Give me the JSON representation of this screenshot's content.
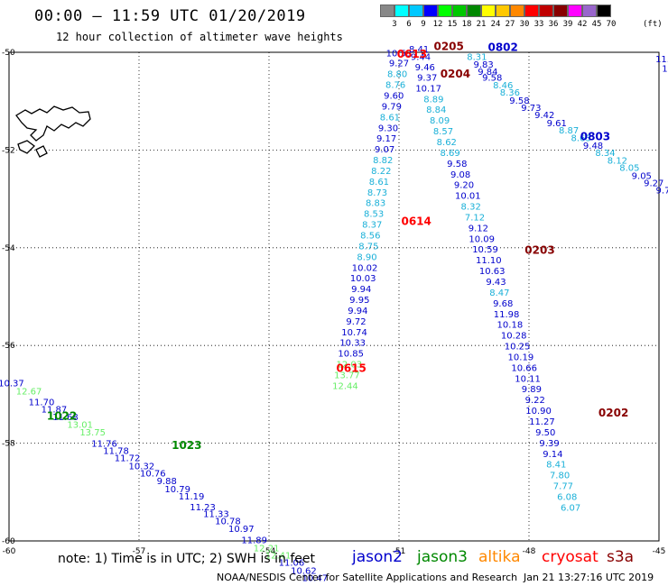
{
  "header": {
    "title": "00:00 – 11:59 UTC 01/20/2019",
    "subtitle": "12 hour collection of altimeter wave heights"
  },
  "colorbar": {
    "unit": "(ft)",
    "swatches": [
      "#888888",
      "#00ffff",
      "#00c8ff",
      "#0000ff",
      "#00ff00",
      "#00c800",
      "#008800",
      "#ffff00",
      "#ffc800",
      "#ff8800",
      "#ff0000",
      "#c00000",
      "#880000",
      "#ff00ff",
      "#9966cc",
      "#000000"
    ],
    "labels": [
      "",
      "3",
      "6",
      "9",
      "12",
      "15",
      "18",
      "21",
      "24",
      "27",
      "30",
      "33",
      "36",
      "39",
      "42",
      "45",
      "70"
    ]
  },
  "note": "note: 1) Time is in UTC; 2) SWH is in feet",
  "legend": [
    {
      "name": "jason2",
      "color": "#0000cc"
    },
    {
      "name": "jason3",
      "color": "#008800"
    },
    {
      "name": "altika",
      "color": "#ff8800"
    },
    {
      "name": "cryosat",
      "color": "#ff0000"
    },
    {
      "name": "s3a",
      "color": "#880000"
    }
  ],
  "footer": {
    "credit": "NOAA/NESDIS Center for Satellite Applications and Research",
    "timestamp": "Jan 21 13:27:16 UTC 2019"
  },
  "chart_data": {
    "type": "scatter",
    "xlim": [
      -60,
      -45
    ],
    "ylim": [
      -60,
      -50
    ],
    "x_ticks": [
      -60,
      -57,
      -54,
      -51,
      -48,
      -45
    ],
    "y_ticks": [
      -50,
      -52,
      -54,
      -56,
      -58,
      -60
    ],
    "grid": true,
    "colors": {
      "dark": "#0000cc",
      "cyan": "#1ab0d8",
      "green": "#66ee66",
      "jason3": "#008800",
      "cryosat": "#ff0000",
      "s3a": "#880000"
    },
    "pass_labels": [
      {
        "text": "1022",
        "lon": -58.78,
        "lat": -57.52,
        "color": "jason3"
      },
      {
        "text": "1023",
        "lon": -55.9,
        "lat": -58.12,
        "color": "jason3"
      },
      {
        "text": "0615",
        "lon": -52.1,
        "lat": -56.54,
        "color": "cryosat"
      },
      {
        "text": "0614",
        "lon": -50.6,
        "lat": -53.53,
        "color": "cryosat"
      },
      {
        "text": "0613",
        "lon": -50.7,
        "lat": -50.11,
        "color": "cryosat"
      },
      {
        "text": "0205",
        "lon": -49.85,
        "lat": -49.95,
        "color": "s3a"
      },
      {
        "text": "0204",
        "lon": -49.7,
        "lat": -50.52,
        "color": "s3a"
      },
      {
        "text": "0203",
        "lon": -47.75,
        "lat": -54.12,
        "color": "s3a"
      },
      {
        "text": "0202",
        "lon": -46.05,
        "lat": -57.45,
        "color": "s3a"
      },
      {
        "text": "0802",
        "lon": -48.6,
        "lat": -49.97,
        "color": "dark"
      },
      {
        "text": "0803",
        "lon": -46.47,
        "lat": -51.8,
        "color": "dark"
      }
    ],
    "tracks": [
      {
        "name": "",
        "points": [
          {
            "lon": -59.95,
            "lat": -56.84,
            "v": "10.37",
            "c": "dark"
          },
          {
            "lon": -59.54,
            "lat": -57.0,
            "v": "12.67",
            "c": "green"
          },
          {
            "lon": -59.25,
            "lat": -57.22,
            "v": "11.70",
            "c": "dark"
          },
          {
            "lon": -58.96,
            "lat": -57.37,
            "v": "11.87",
            "c": "dark"
          },
          {
            "lon": -58.7,
            "lat": -57.53,
            "v": "11.68",
            "c": "dark"
          },
          {
            "lon": -58.36,
            "lat": -57.68,
            "v": "13.01",
            "c": "green"
          },
          {
            "lon": -58.07,
            "lat": -57.84,
            "v": "13.75",
            "c": "green"
          },
          {
            "lon": -57.8,
            "lat": -58.07,
            "v": "11.76",
            "c": "dark"
          },
          {
            "lon": -57.53,
            "lat": -58.22,
            "v": "11.78",
            "c": "dark"
          },
          {
            "lon": -57.27,
            "lat": -58.37,
            "v": "11.72",
            "c": "dark"
          },
          {
            "lon": -56.94,
            "lat": -58.53,
            "v": "10.32",
            "c": "dark"
          },
          {
            "lon": -56.68,
            "lat": -58.68,
            "v": "10.76",
            "c": "dark"
          },
          {
            "lon": -56.36,
            "lat": -58.84,
            "v": "9.88",
            "c": "dark"
          },
          {
            "lon": -56.11,
            "lat": -59.0,
            "v": "10.79",
            "c": "dark"
          },
          {
            "lon": -55.79,
            "lat": -59.15,
            "v": "11.19",
            "c": "dark"
          },
          {
            "lon": -55.53,
            "lat": -59.37,
            "v": "11.23",
            "c": "dark"
          },
          {
            "lon": -55.22,
            "lat": -59.51,
            "v": "11.33",
            "c": "dark"
          },
          {
            "lon": -54.95,
            "lat": -59.66,
            "v": "10.78",
            "c": "dark"
          },
          {
            "lon": -54.64,
            "lat": -59.82,
            "v": "10.97",
            "c": "dark"
          },
          {
            "lon": -54.34,
            "lat": -60.05,
            "v": "11.89",
            "c": "dark"
          },
          {
            "lon": -54.06,
            "lat": -60.21,
            "v": "12.21",
            "c": "green"
          },
          {
            "lon": -53.79,
            "lat": -60.36,
            "v": "12.41",
            "c": "green"
          },
          {
            "lon": -53.48,
            "lat": -60.51,
            "v": "11.06",
            "c": "dark"
          },
          {
            "lon": -53.2,
            "lat": -60.67,
            "v": "10.62",
            "c": "dark"
          },
          {
            "lon": -52.94,
            "lat": -60.82,
            "v": "10.47",
            "c": "dark"
          }
        ]
      },
      {
        "name": "",
        "points": [
          {
            "lon": -51.0,
            "lat": -50.08,
            "v": "10.53",
            "c": "dark"
          },
          {
            "lon": -51.0,
            "lat": -50.29,
            "v": "9.27",
            "c": "dark"
          },
          {
            "lon": -51.04,
            "lat": -50.51,
            "v": "8.80",
            "c": "cyan"
          },
          {
            "lon": -51.08,
            "lat": -50.73,
            "v": "8.76",
            "c": "cyan"
          },
          {
            "lon": -51.12,
            "lat": -50.95,
            "v": "9.60",
            "c": "dark"
          },
          {
            "lon": -51.17,
            "lat": -51.17,
            "v": "9.79",
            "c": "dark"
          },
          {
            "lon": -51.21,
            "lat": -51.39,
            "v": "8.61",
            "c": "cyan"
          },
          {
            "lon": -51.25,
            "lat": -51.61,
            "v": "9.30",
            "c": "dark"
          },
          {
            "lon": -51.29,
            "lat": -51.83,
            "v": "9.17",
            "c": "dark"
          },
          {
            "lon": -51.33,
            "lat": -52.05,
            "v": "9.07",
            "c": "dark"
          },
          {
            "lon": -51.37,
            "lat": -52.27,
            "v": "8.82",
            "c": "cyan"
          },
          {
            "lon": -51.41,
            "lat": -52.49,
            "v": "8.22",
            "c": "cyan"
          },
          {
            "lon": -51.46,
            "lat": -52.71,
            "v": "8.61",
            "c": "cyan"
          },
          {
            "lon": -51.5,
            "lat": -52.93,
            "v": "8.73",
            "c": "cyan"
          },
          {
            "lon": -51.54,
            "lat": -53.15,
            "v": "8.83",
            "c": "cyan"
          },
          {
            "lon": -51.58,
            "lat": -53.37,
            "v": "8.53",
            "c": "cyan"
          },
          {
            "lon": -51.62,
            "lat": -53.59,
            "v": "8.37",
            "c": "cyan"
          },
          {
            "lon": -51.66,
            "lat": -53.81,
            "v": "8.56",
            "c": "cyan"
          },
          {
            "lon": -51.7,
            "lat": -54.03,
            "v": "8.75",
            "c": "cyan"
          },
          {
            "lon": -51.74,
            "lat": -54.25,
            "v": "8.90",
            "c": "cyan"
          },
          {
            "lon": -51.79,
            "lat": -54.47,
            "v": "10.02",
            "c": "dark"
          },
          {
            "lon": -51.83,
            "lat": -54.69,
            "v": "10.03",
            "c": "dark"
          },
          {
            "lon": -51.87,
            "lat": -54.91,
            "v": "9.94",
            "c": "dark"
          },
          {
            "lon": -51.91,
            "lat": -55.13,
            "v": "9.95",
            "c": "dark"
          },
          {
            "lon": -51.95,
            "lat": -55.35,
            "v": "9.94",
            "c": "dark"
          },
          {
            "lon": -51.99,
            "lat": -55.57,
            "v": "9.72",
            "c": "dark"
          },
          {
            "lon": -52.03,
            "lat": -55.79,
            "v": "10.74",
            "c": "dark"
          },
          {
            "lon": -52.07,
            "lat": -56.01,
            "v": "10.33",
            "c": "dark"
          },
          {
            "lon": -52.11,
            "lat": -56.23,
            "v": "10.85",
            "c": "dark"
          },
          {
            "lon": -52.15,
            "lat": -56.45,
            "v": "12.03",
            "c": "green"
          },
          {
            "lon": -52.2,
            "lat": -56.67,
            "v": "13.77",
            "c": "green"
          },
          {
            "lon": -52.24,
            "lat": -56.89,
            "v": "12.44",
            "c": "green"
          }
        ]
      },
      {
        "name": "",
        "points": [
          {
            "lon": -50.54,
            "lat": -50.0,
            "v": "8.41",
            "c": "dark"
          },
          {
            "lon": -50.5,
            "lat": -50.16,
            "v": "9.44",
            "c": "dark"
          },
          {
            "lon": -50.4,
            "lat": -50.37,
            "v": "9.46",
            "c": "dark"
          },
          {
            "lon": -50.35,
            "lat": -50.58,
            "v": "9.37",
            "c": "dark"
          },
          {
            "lon": -50.32,
            "lat": -50.8,
            "v": "10.17",
            "c": "dark"
          },
          {
            "lon": -50.2,
            "lat": -51.02,
            "v": "8.89",
            "c": "cyan"
          },
          {
            "lon": -50.14,
            "lat": -51.24,
            "v": "8.84",
            "c": "cyan"
          },
          {
            "lon": -50.06,
            "lat": -51.46,
            "v": "8.09",
            "c": "cyan"
          },
          {
            "lon": -49.98,
            "lat": -51.68,
            "v": "8.57",
            "c": "cyan"
          },
          {
            "lon": -49.9,
            "lat": -51.9,
            "v": "8.62",
            "c": "cyan"
          },
          {
            "lon": -49.82,
            "lat": -52.12,
            "v": "8.69",
            "c": "cyan"
          },
          {
            "lon": -49.66,
            "lat": -52.34,
            "v": "9.58",
            "c": "dark"
          },
          {
            "lon": -49.58,
            "lat": -52.56,
            "v": "9.08",
            "c": "dark"
          },
          {
            "lon": -49.5,
            "lat": -52.78,
            "v": "9.20",
            "c": "dark"
          },
          {
            "lon": -49.41,
            "lat": -53.0,
            "v": "10.01",
            "c": "dark"
          },
          {
            "lon": -49.34,
            "lat": -53.22,
            "v": "8.32",
            "c": "cyan"
          },
          {
            "lon": -49.25,
            "lat": -53.44,
            "v": "7.12",
            "c": "cyan"
          },
          {
            "lon": -49.17,
            "lat": -53.66,
            "v": "9.12",
            "c": "dark"
          },
          {
            "lon": -49.09,
            "lat": -53.88,
            "v": "10.09",
            "c": "dark"
          },
          {
            "lon": -49.01,
            "lat": -54.1,
            "v": "10.59",
            "c": "dark"
          },
          {
            "lon": -48.93,
            "lat": -54.32,
            "v": "11.10",
            "c": "dark"
          },
          {
            "lon": -48.85,
            "lat": -54.54,
            "v": "10.63",
            "c": "dark"
          },
          {
            "lon": -48.76,
            "lat": -54.76,
            "v": "9.43",
            "c": "dark"
          },
          {
            "lon": -48.68,
            "lat": -54.98,
            "v": "8.47",
            "c": "cyan"
          },
          {
            "lon": -48.6,
            "lat": -55.2,
            "v": "9.68",
            "c": "dark"
          },
          {
            "lon": -48.52,
            "lat": -55.42,
            "v": "11.98",
            "c": "dark"
          },
          {
            "lon": -48.44,
            "lat": -55.64,
            "v": "10.18",
            "c": "dark"
          },
          {
            "lon": -48.35,
            "lat": -55.86,
            "v": "10.28",
            "c": "dark"
          },
          {
            "lon": -48.27,
            "lat": -56.08,
            "v": "10.25",
            "c": "dark"
          },
          {
            "lon": -48.19,
            "lat": -56.3,
            "v": "10.19",
            "c": "dark"
          },
          {
            "lon": -48.11,
            "lat": -56.52,
            "v": "10.66",
            "c": "dark"
          },
          {
            "lon": -48.03,
            "lat": -56.74,
            "v": "10.11",
            "c": "dark"
          },
          {
            "lon": -47.94,
            "lat": -56.96,
            "v": "9.89",
            "c": "dark"
          },
          {
            "lon": -47.86,
            "lat": -57.18,
            "v": "9.22",
            "c": "dark"
          },
          {
            "lon": -47.78,
            "lat": -57.4,
            "v": "10.90",
            "c": "dark"
          },
          {
            "lon": -47.7,
            "lat": -57.62,
            "v": "11.27",
            "c": "dark"
          },
          {
            "lon": -47.62,
            "lat": -57.84,
            "v": "9.50",
            "c": "dark"
          },
          {
            "lon": -47.53,
            "lat": -58.06,
            "v": "9.39",
            "c": "dark"
          },
          {
            "lon": -47.45,
            "lat": -58.28,
            "v": "9.14",
            "c": "dark"
          },
          {
            "lon": -47.37,
            "lat": -58.5,
            "v": "8.41",
            "c": "cyan"
          },
          {
            "lon": -47.29,
            "lat": -58.72,
            "v": "7.80",
            "c": "cyan"
          },
          {
            "lon": -47.21,
            "lat": -58.94,
            "v": "7.77",
            "c": "cyan"
          },
          {
            "lon": -47.12,
            "lat": -59.16,
            "v": "6.08",
            "c": "cyan"
          },
          {
            "lon": -47.04,
            "lat": -59.38,
            "v": "6.07",
            "c": "cyan"
          }
        ]
      },
      {
        "name": "",
        "points": [
          {
            "lon": -49.2,
            "lat": -50.16,
            "v": "8.31",
            "c": "cyan"
          },
          {
            "lon": -49.05,
            "lat": -50.31,
            "v": "9.83",
            "c": "dark"
          },
          {
            "lon": -48.95,
            "lat": -50.46,
            "v": "9.84",
            "c": "dark"
          },
          {
            "lon": -48.85,
            "lat": -50.58,
            "v": "9.58",
            "c": "dark"
          },
          {
            "lon": -48.6,
            "lat": -50.74,
            "v": "8.46",
            "c": "cyan"
          },
          {
            "lon": -48.44,
            "lat": -50.89,
            "v": "8.36",
            "c": "cyan"
          },
          {
            "lon": -48.22,
            "lat": -51.05,
            "v": "9.58",
            "c": "dark"
          },
          {
            "lon": -47.95,
            "lat": -51.2,
            "v": "9.73",
            "c": "dark"
          },
          {
            "lon": -47.64,
            "lat": -51.35,
            "v": "9.42",
            "c": "dark"
          },
          {
            "lon": -47.36,
            "lat": -51.51,
            "v": "9.61",
            "c": "dark"
          },
          {
            "lon": -47.08,
            "lat": -51.66,
            "v": "8.87",
            "c": "cyan"
          },
          {
            "lon": -46.8,
            "lat": -51.82,
            "v": "8.63",
            "c": "cyan"
          },
          {
            "lon": -46.52,
            "lat": -51.97,
            "v": "9.48",
            "c": "dark"
          },
          {
            "lon": -46.24,
            "lat": -52.12,
            "v": "8.34",
            "c": "cyan"
          },
          {
            "lon": -45.96,
            "lat": -52.28,
            "v": "8.12",
            "c": "cyan"
          },
          {
            "lon": -45.68,
            "lat": -52.43,
            "v": "8.05",
            "c": "cyan"
          },
          {
            "lon": -45.4,
            "lat": -52.59,
            "v": "9.05",
            "c": "dark"
          },
          {
            "lon": -45.12,
            "lat": -52.74,
            "v": "9.27",
            "c": "dark"
          },
          {
            "lon": -44.84,
            "lat": -52.89,
            "v": "9.79",
            "c": "dark"
          },
          {
            "lon": -44.56,
            "lat": -53.05,
            "v": "9.91",
            "c": "dark"
          },
          {
            "lon": -44.28,
            "lat": -53.2,
            "v": "9.69",
            "c": "dark"
          },
          {
            "lon": -44.0,
            "lat": -53.36,
            "v": "10.03",
            "c": "dark"
          }
        ]
      },
      {
        "name": "",
        "points": [
          {
            "lon": -44.85,
            "lat": -50.2,
            "v": "11.7",
            "c": "dark"
          },
          {
            "lon": -44.7,
            "lat": -50.4,
            "v": "11.4",
            "c": "dark"
          },
          {
            "lon": -44.6,
            "lat": -50.6,
            "v": "10",
            "c": "dark"
          },
          {
            "lon": -44.55,
            "lat": -50.8,
            "v": "10",
            "c": "dark"
          }
        ]
      }
    ]
  }
}
